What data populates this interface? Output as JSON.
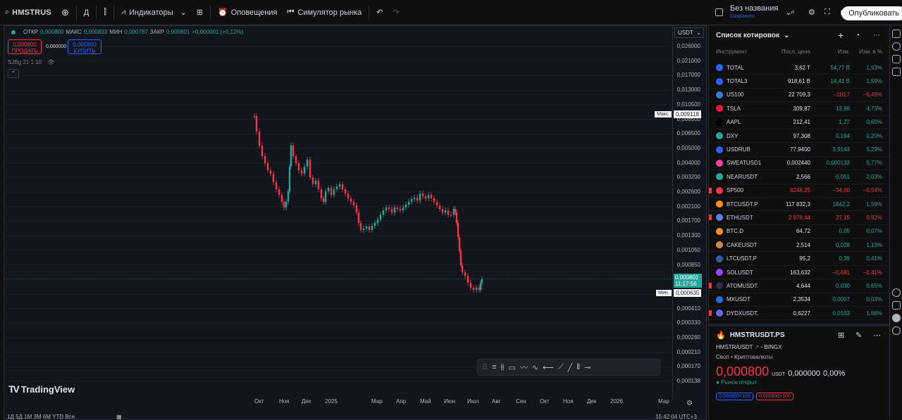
{
  "topbar": {
    "symbol": "HMSTRUS",
    "interval": "Д",
    "indicators_label": "Индикаторы",
    "alerts_label": "Оповещения",
    "replay_label": "Симулятор рынка",
    "layout_name": "Без названия",
    "layout_status": "Сохранить",
    "publish_label": "Опубликовать"
  },
  "chart": {
    "ohlc": {
      "o_label": "ОТКР",
      "o": "0,000800",
      "h_label": "МАКС",
      "h": "0,000833",
      "l_label": "МИН",
      "l": "0,000787",
      "c_label": "ЗАКР",
      "c": "0,000801",
      "change": "+0,000001 (+0,12%)"
    },
    "sell_price": "0,000800",
    "sell_label": "ПРОДАТЬ",
    "buy_price": "0,000800",
    "buy_label": "КУПИТЬ",
    "spread": "0,000000",
    "indicator_text": "SJBg 21 1 10",
    "currency": "USDT",
    "max_label": "Макс.",
    "max_value": "0,009118",
    "min_label": "Мин.",
    "min_value": "0,000635",
    "last_price": "0,000801",
    "countdown": "11:17:56",
    "logo_text": "TradingView",
    "price_ticks": [
      "0,026000",
      "0,021000",
      "0,017000",
      "0,013000",
      "0,010500",
      "0,008500",
      "0,006500",
      "0,005000",
      "0,004000",
      "0,003200",
      "0,002600",
      "0,002100",
      "0,001700",
      "0,001300",
      "0,001050",
      "0,000850",
      "0,000640",
      "0,000510",
      "0,000410",
      "0,000330",
      "0,000260",
      "0,000210",
      "0,000170",
      "0,000138"
    ],
    "time_ticks": [
      "Окт",
      "Ноя",
      "Дек",
      "2025",
      "Мар",
      "Апр",
      "Май",
      "Июн",
      "Июл",
      "Авг",
      "Сен",
      "Окт",
      "Ноя",
      "Дек",
      "2026",
      "Мар"
    ],
    "bottom_timeframes": "1Д 5Д 1М 3М 6М YTD Все",
    "bottom_time": "15:42:04 UTC+3"
  },
  "watchlist": {
    "title": "Список котировок",
    "col_instrument": "Инструмент",
    "col_last": "Посл. цена",
    "col_chg": "Изм.",
    "col_pct": "Изм. в %",
    "rows": [
      {
        "sym": "TOTAL",
        "last": "3,62 T",
        "chg": "54,77 B",
        "pct": "1,53%",
        "dir": "up",
        "color": "#2962ff",
        "flag": false
      },
      {
        "sym": "TOTAL3",
        "last": "918,61 B",
        "chg": "14,41 B",
        "pct": "1,59%",
        "dir": "up",
        "color": "#2962ff",
        "flag": false
      },
      {
        "sym": "US100",
        "last": "22 709,3",
        "chg": "−110,7",
        "pct": "−0,49%",
        "dir": "dn",
        "color": "#3c78d8",
        "flag": false
      },
      {
        "sym": "TSLA",
        "last": "309,87",
        "chg": "13,99",
        "pct": "4,73%",
        "dir": "up",
        "color": "#e31937",
        "flag": false
      },
      {
        "sym": "AAPL",
        "last": "212,41",
        "chg": "1,27",
        "pct": "0,60%",
        "dir": "up",
        "color": "#000000",
        "flag": false
      },
      {
        "sym": "DXY",
        "last": "97,308",
        "chg": "0,194",
        "pct": "0,20%",
        "dir": "up",
        "color": "#26a69a",
        "flag": false
      },
      {
        "sym": "USDRUB",
        "last": "77,9400",
        "chg": "3,9143",
        "pct": "5,29%",
        "dir": "up",
        "color": "#2962ff",
        "flag": false
      },
      {
        "sym": "SWEATUSD1",
        "last": "0,002440",
        "chg": "0,000133",
        "pct": "5,77%",
        "dir": "up",
        "color": "#f23fa0",
        "flag": false
      },
      {
        "sym": "NEARUSDT",
        "last": "2,566",
        "chg": "0,051",
        "pct": "2,03%",
        "dir": "up",
        "color": "#26a69a",
        "flag": false
      },
      {
        "sym": "SP500",
        "last": "6248,25",
        "chg": "−34,00",
        "pct": "−0,54%",
        "dir": "dn",
        "color": "#f23645",
        "flag": true
      },
      {
        "sym": "BTCUSDT.P",
        "last": "117 832,3",
        "chg": "1842,2",
        "pct": "1,59%",
        "dir": "up",
        "color": "#f7931a",
        "flag": false
      },
      {
        "sym": "ETHUSDT",
        "last": "2 978,44",
        "chg": "27,15",
        "pct": "0,92%",
        "dir": "dn",
        "color": "#627eea",
        "flag": true
      },
      {
        "sym": "BTC.D",
        "last": "64,72",
        "chg": "0,05",
        "pct": "0,07%",
        "dir": "up",
        "color": "#f7931a",
        "flag": false
      },
      {
        "sym": "CAKEUSDT",
        "last": "2,514",
        "chg": "0,028",
        "pct": "1,13%",
        "dir": "up",
        "color": "#d1884f",
        "flag": false
      },
      {
        "sym": "LTCUSDT.P",
        "last": "95,2",
        "chg": "0,39",
        "pct": "0,41%",
        "dir": "up",
        "color": "#345d9d",
        "flag": false
      },
      {
        "sym": "SOLUSDT",
        "last": "163,632",
        "chg": "−0,681",
        "pct": "−0,41%",
        "dir": "dn",
        "color": "#9945ff",
        "flag": false
      },
      {
        "sym": "ATOMUSDT.",
        "last": "4,644",
        "chg": "0,030",
        "pct": "0,65%",
        "dir": "up",
        "color": "#2e3148",
        "flag": true
      },
      {
        "sym": "MXUSDT",
        "last": "2,3534",
        "chg": "0,0007",
        "pct": "0,03%",
        "dir": "up",
        "color": "#1972e2",
        "flag": false
      },
      {
        "sym": "DYDXUSDT.",
        "last": "0,6227",
        "chg": "0,0103",
        "pct": "1,68%",
        "dir": "up",
        "color": "#6966ff",
        "flag": true
      }
    ]
  },
  "details": {
    "symbol": "HMSTRUSDT.PS",
    "pair": "HMSTR/USDT",
    "exchange": "BINGX",
    "category": "Своп • Криптовалюты",
    "price": "0,000800",
    "currency": "USDT",
    "change": "0,000000",
    "change_pct": "0,00%",
    "market_status": "Рынок открыт",
    "bid_tag": "0,000800×100",
    "ask_tag": "0,000800×100"
  }
}
